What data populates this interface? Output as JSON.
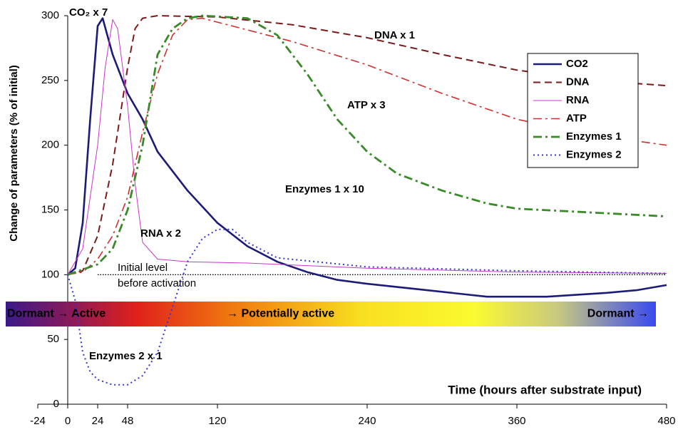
{
  "chart_data": {
    "type": "line",
    "ylabel": "Change of parameters (% of initial)",
    "xlabel": "Time (hours after substrate input)",
    "xlim": [
      -24,
      480
    ],
    "xticks": [
      -24,
      0,
      24,
      48,
      120,
      240,
      360,
      480
    ],
    "ylim": [
      0,
      300
    ],
    "yticks": [
      0,
      50,
      100,
      150,
      200,
      250,
      300
    ],
    "legend": "upper right",
    "series": [
      {
        "name": "CO2",
        "color": "#1c1c78",
        "style": "solid",
        "width": 2.6,
        "x": [
          0,
          6,
          12,
          18,
          24,
          28,
          36,
          48,
          60,
          72,
          96,
          120,
          144,
          168,
          192,
          216,
          240,
          288,
          336,
          384,
          432,
          456,
          480
        ],
        "values": [
          100,
          105,
          140,
          220,
          292,
          298,
          270,
          240,
          220,
          195,
          165,
          140,
          122,
          110,
          102,
          96,
          93,
          88,
          83,
          83,
          86,
          88,
          92
        ]
      },
      {
        "name": "DNA",
        "color": "#7a1a1a",
        "style": "dashed",
        "width": 2,
        "x": [
          0,
          12,
          24,
          36,
          48,
          54,
          60,
          72,
          120,
          180,
          240,
          300,
          360,
          420,
          480
        ],
        "values": [
          100,
          103,
          130,
          185,
          260,
          290,
          298,
          300,
          299,
          293,
          283,
          270,
          258,
          250,
          246
        ]
      },
      {
        "name": "RNA",
        "color": "#cc33cc",
        "style": "solid",
        "width": 1,
        "x": [
          0,
          12,
          24,
          30,
          36,
          40,
          48,
          54,
          60,
          72,
          96,
          144,
          240,
          360,
          480
        ],
        "values": [
          100,
          120,
          200,
          260,
          297,
          290,
          230,
          170,
          125,
          112,
          110,
          109,
          105,
          102,
          101
        ]
      },
      {
        "name": "ATP",
        "color": "#d23030",
        "style": "dashdot",
        "width": 1.6,
        "x": [
          0,
          12,
          24,
          36,
          48,
          60,
          72,
          84,
          96,
          108,
          120,
          180,
          240,
          300,
          360,
          420,
          480
        ],
        "values": [
          100,
          102,
          112,
          130,
          160,
          210,
          255,
          285,
          297,
          298,
          295,
          280,
          262,
          240,
          220,
          208,
          200
        ]
      },
      {
        "name": "Enzymes 1",
        "color": "#3a8a2a",
        "style": "dashdot",
        "width": 2.8,
        "x": [
          0,
          24,
          36,
          48,
          60,
          72,
          84,
          96,
          108,
          144,
          168,
          192,
          216,
          240,
          264,
          300,
          336,
          360,
          420,
          480
        ],
        "values": [
          100,
          108,
          120,
          150,
          200,
          270,
          290,
          298,
          300,
          298,
          285,
          255,
          220,
          195,
          178,
          165,
          155,
          151,
          148,
          145
        ]
      },
      {
        "name": "Enzymes 2",
        "color": "#3333dd",
        "style": "dotted",
        "width": 2,
        "x": [
          0,
          6,
          12,
          18,
          24,
          36,
          48,
          60,
          72,
          84,
          96,
          108,
          120,
          132,
          144,
          168,
          240,
          360,
          480
        ],
        "values": [
          100,
          80,
          40,
          25,
          19,
          15,
          15,
          22,
          40,
          75,
          110,
          128,
          135,
          135,
          125,
          113,
          106,
          103,
          101
        ]
      }
    ],
    "annotations": [
      "CO₂  x 7",
      "DNA  x 1",
      "ATP  x 3",
      "RNA  x 2",
      "Enzymes 1  x 10",
      "Enzymes 2  x 1"
    ],
    "reference_line": {
      "y": 100,
      "x": [
        24,
        480
      ],
      "label": [
        "Initial level",
        "before activation"
      ]
    },
    "activity_band": [
      "Dormant  →   Active",
      "→   Potentially   active",
      "Dormant →"
    ]
  }
}
